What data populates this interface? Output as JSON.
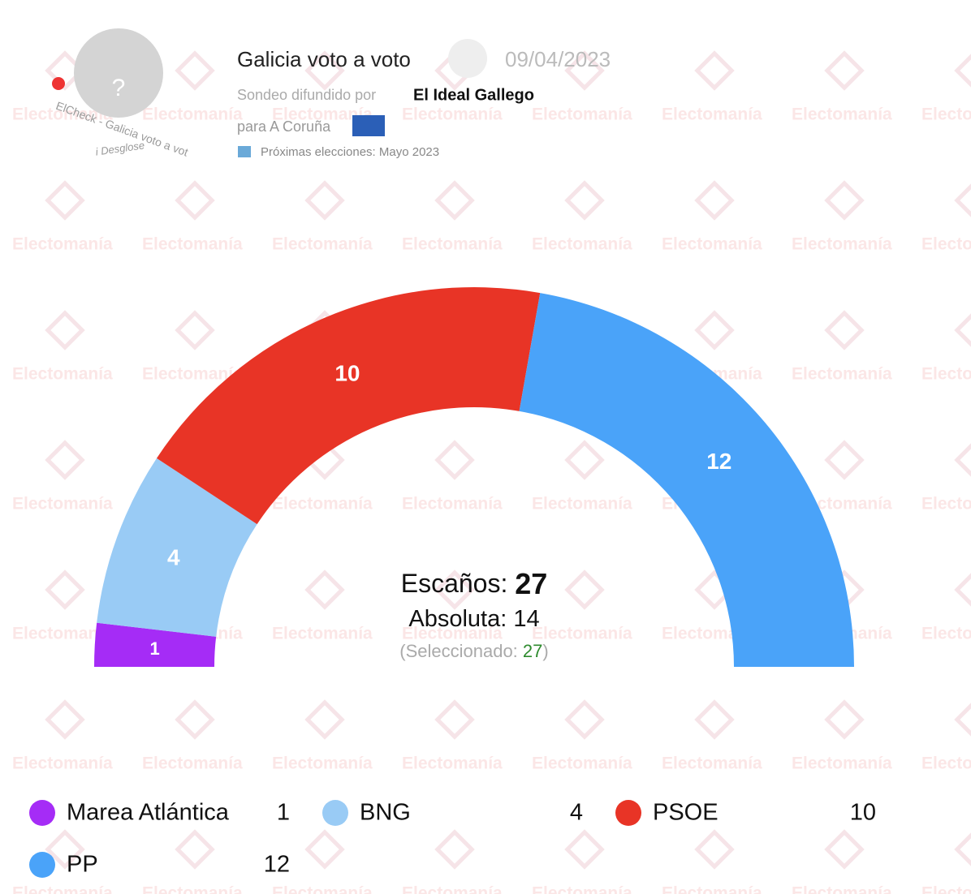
{
  "header": {
    "title": "Galicia voto a voto",
    "date": "09/04/2023",
    "source_prefix": "Sondeo difundido por",
    "source": "El Ideal Gallego",
    "scope": "para A Coruña",
    "next_elections": "Próximas elecciones: Mayo 2023",
    "badge_text": "ElCheck - Galicia voto a vot",
    "badge_link": "i Desglose",
    "badge_placeholder": "?"
  },
  "watermark": "Electomanía",
  "chart_data": {
    "type": "parliament",
    "series": [
      {
        "name": "Marea Atlántica",
        "color": "#a52cf6",
        "values": [
          1
        ]
      },
      {
        "name": "BNG",
        "color": "#99cbf5",
        "values": [
          4
        ]
      },
      {
        "name": "PSOE",
        "color": "#e83426",
        "values": [
          10
        ]
      },
      {
        "name": "PP",
        "color": "#4aa3f9",
        "values": [
          12
        ]
      }
    ],
    "seats_label": "Escaños:",
    "total": 27,
    "majority_label": "Absoluta:",
    "majority": 14,
    "selected_label": "(Seleccionado:",
    "selected": 27,
    "selected_close": ")"
  }
}
